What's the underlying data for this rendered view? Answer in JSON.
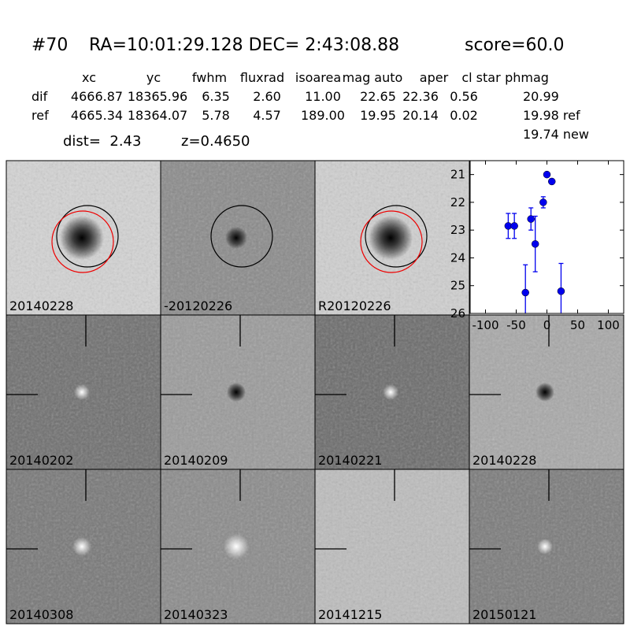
{
  "header": {
    "id": "#70",
    "coords": "RA=10:01:29.128 DEC= 2:43:08.88",
    "score": "score=60.0"
  },
  "table": {
    "columns": [
      "xc",
      "yc",
      "fwhm",
      "fluxrad",
      "isoarea",
      "mag auto",
      "aper",
      "cl star",
      "phmag"
    ],
    "rows": [
      {
        "label": "dif",
        "cells": [
          "4666.87",
          "18365.96",
          "6.35",
          "2.60",
          "11.00",
          "22.65",
          "22.36",
          "0.56",
          "20.99"
        ]
      },
      {
        "label": "ref",
        "cells": [
          "4665.34",
          "18364.07",
          "5.78",
          "4.57",
          "189.00",
          "19.95",
          "20.14",
          "0.02",
          "19.98 ref"
        ]
      }
    ],
    "extra": "19.74 new"
  },
  "dist": "dist=  2.43",
  "z": "z=0.4650",
  "panels": [
    {
      "label": "20140228"
    },
    {
      "label": "-20120226"
    },
    {
      "label": "R20120226"
    },
    {
      "label": "20140202"
    },
    {
      "label": "20140209"
    },
    {
      "label": "20140221"
    },
    {
      "label": "20140228",
      "label_color": "#ff0000"
    },
    {
      "label": "20140308"
    },
    {
      "label": "20140323"
    },
    {
      "label": "20141215"
    },
    {
      "label": "20150121"
    }
  ],
  "light_curve": {
    "type": "scatter",
    "x": [
      -63,
      -53,
      -35,
      -26,
      -19,
      -6,
      0,
      8,
      23
    ],
    "y": [
      22.85,
      22.85,
      25.25,
      22.6,
      23.5,
      22.0,
      21.0,
      21.25,
      25.2
    ],
    "err": [
      0.45,
      0.45,
      1.0,
      0.4,
      1.0,
      0.2,
      0.05,
      0.07,
      1.0
    ],
    "xlim": [
      -125,
      125
    ],
    "ylim": [
      26,
      20.5
    ],
    "xticks": [
      -100,
      -50,
      0,
      50,
      100
    ],
    "yticks": [
      21,
      22,
      23,
      24,
      25,
      26
    ],
    "color": "#0000ee"
  }
}
